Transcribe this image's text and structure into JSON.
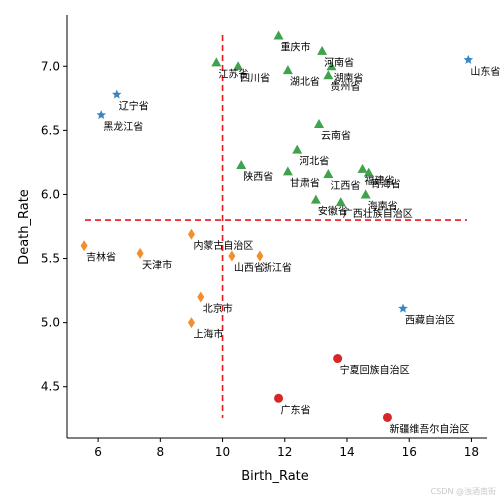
{
  "chart_data": {
    "type": "scatter",
    "title": "",
    "xlabel": "Birth_Rate",
    "ylabel": "Death_Rate",
    "xlim": [
      5,
      18.5
    ],
    "ylim": [
      4.1,
      7.4
    ],
    "xticks": [
      6,
      8,
      10,
      12,
      14,
      16,
      18
    ],
    "yticks": [
      4.5,
      5.0,
      5.5,
      6.0,
      6.5,
      7.0
    ],
    "grid": false,
    "reference_lines": {
      "vertical_x": 10,
      "horizontal_y": 5.8,
      "color": "#e41a1c",
      "style": "dashed"
    },
    "groups": [
      {
        "marker": "star",
        "color": "#3a86c4",
        "points": [
          {
            "label": "辽宁省",
            "x": 6.6,
            "y": 6.78
          },
          {
            "label": "黑龙江省",
            "x": 6.1,
            "y": 6.62
          },
          {
            "label": "山东省",
            "x": 17.9,
            "y": 7.05
          },
          {
            "label": "西藏自治区",
            "x": 15.8,
            "y": 5.11
          }
        ]
      },
      {
        "marker": "triangle",
        "color": "#3fa34d",
        "points": [
          {
            "label": "重庆市",
            "x": 11.8,
            "y": 7.24
          },
          {
            "label": "江苏省",
            "x": 9.8,
            "y": 7.03
          },
          {
            "label": "四川省",
            "x": 10.5,
            "y": 7.0
          },
          {
            "label": "湖北省",
            "x": 12.1,
            "y": 6.97
          },
          {
            "label": "河南省",
            "x": 13.2,
            "y": 7.12
          },
          {
            "label": "湖南省",
            "x": 13.5,
            "y": 7.0
          },
          {
            "label": "贵州省",
            "x": 13.4,
            "y": 6.93
          },
          {
            "label": "云南省",
            "x": 13.1,
            "y": 6.55
          },
          {
            "label": "河北省",
            "x": 12.4,
            "y": 6.35
          },
          {
            "label": "陕西省",
            "x": 10.6,
            "y": 6.23
          },
          {
            "label": "甘肃省",
            "x": 12.1,
            "y": 6.18
          },
          {
            "label": "江西省",
            "x": 13.4,
            "y": 6.16
          },
          {
            "label": "福建省",
            "x": 14.5,
            "y": 6.2
          },
          {
            "label": "青海省",
            "x": 14.7,
            "y": 6.17
          },
          {
            "label": "海南省",
            "x": 14.6,
            "y": 6.0
          },
          {
            "label": "安徽省",
            "x": 13.0,
            "y": 5.96
          },
          {
            "label": "广西壮族自治区",
            "x": 13.8,
            "y": 5.94
          }
        ]
      },
      {
        "marker": "diamond",
        "color": "#f28e2b",
        "points": [
          {
            "label": "吉林省",
            "x": 5.55,
            "y": 5.6
          },
          {
            "label": "天津市",
            "x": 7.35,
            "y": 5.54
          },
          {
            "label": "内蒙古自治区",
            "x": 9.0,
            "y": 5.69
          },
          {
            "label": "山西省",
            "x": 10.3,
            "y": 5.52
          },
          {
            "label": "浙江省",
            "x": 11.2,
            "y": 5.52
          },
          {
            "label": "北京市",
            "x": 9.3,
            "y": 5.2
          },
          {
            "label": "上海市",
            "x": 9.0,
            "y": 5.0
          }
        ]
      },
      {
        "marker": "circle",
        "color": "#d62728",
        "points": [
          {
            "label": "宁夏回族自治区",
            "x": 13.7,
            "y": 4.72
          },
          {
            "label": "广东省",
            "x": 11.8,
            "y": 4.41
          },
          {
            "label": "新疆维吾尔自治区",
            "x": 15.3,
            "y": 4.26
          }
        ]
      }
    ]
  },
  "watermark": "CSDN @浊酒南街"
}
